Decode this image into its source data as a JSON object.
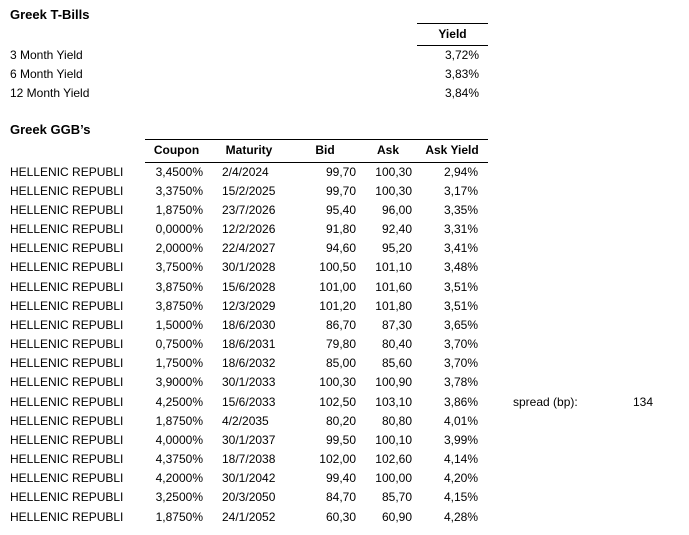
{
  "colors": {
    "background": "#ffffff",
    "text": "#000000",
    "border": "#000000"
  },
  "tbills": {
    "title": "Greek T-Bills",
    "yield_header": "Yield",
    "rows": [
      {
        "label": "3 Month Yield",
        "yield": "3,72%"
      },
      {
        "label": "6 Month Yield",
        "yield": "3,83%"
      },
      {
        "label": "12 Month Yield",
        "yield": "3,84%"
      }
    ]
  },
  "ggb": {
    "title": "Greek GGB’s",
    "headers": {
      "coupon": "Coupon",
      "maturity": "Maturity",
      "bid": "Bid",
      "ask": "Ask",
      "ask_yield": "Ask Yield"
    },
    "rows": [
      {
        "name": "HELLENIC REPUBLI",
        "coupon": "3,4500%",
        "maturity": "2/4/2024",
        "bid": "99,70",
        "ask": "100,30",
        "ask_yield": "2,94%"
      },
      {
        "name": "HELLENIC REPUBLI",
        "coupon": "3,3750%",
        "maturity": "15/2/2025",
        "bid": "99,70",
        "ask": "100,30",
        "ask_yield": "3,17%"
      },
      {
        "name": "HELLENIC REPUBLI",
        "coupon": "1,8750%",
        "maturity": "23/7/2026",
        "bid": "95,40",
        "ask": "96,00",
        "ask_yield": "3,35%"
      },
      {
        "name": "HELLENIC REPUBLI",
        "coupon": "0,0000%",
        "maturity": "12/2/2026",
        "bid": "91,80",
        "ask": "92,40",
        "ask_yield": "3,31%"
      },
      {
        "name": "HELLENIC REPUBLI",
        "coupon": "2,0000%",
        "maturity": "22/4/2027",
        "bid": "94,60",
        "ask": "95,20",
        "ask_yield": "3,41%"
      },
      {
        "name": "HELLENIC REPUBLI",
        "coupon": "3,7500%",
        "maturity": "30/1/2028",
        "bid": "100,50",
        "ask": "101,10",
        "ask_yield": "3,48%"
      },
      {
        "name": "HELLENIC REPUBLI",
        "coupon": "3,8750%",
        "maturity": "15/6/2028",
        "bid": "101,00",
        "ask": "101,60",
        "ask_yield": "3,51%"
      },
      {
        "name": "HELLENIC REPUBLI",
        "coupon": "3,8750%",
        "maturity": "12/3/2029",
        "bid": "101,20",
        "ask": "101,80",
        "ask_yield": "3,51%"
      },
      {
        "name": "HELLENIC REPUBLI",
        "coupon": "1,5000%",
        "maturity": "18/6/2030",
        "bid": "86,70",
        "ask": "87,30",
        "ask_yield": "3,65%"
      },
      {
        "name": "HELLENIC REPUBLI",
        "coupon": "0,7500%",
        "maturity": "18/6/2031",
        "bid": "79,80",
        "ask": "80,40",
        "ask_yield": "3,70%"
      },
      {
        "name": "HELLENIC REPUBLI",
        "coupon": "1,7500%",
        "maturity": "18/6/2032",
        "bid": "85,00",
        "ask": "85,60",
        "ask_yield": "3,70%"
      },
      {
        "name": "HELLENIC REPUBLI",
        "coupon": "3,9000%",
        "maturity": "30/1/2033",
        "bid": "100,30",
        "ask": "100,90",
        "ask_yield": "3,78%"
      },
      {
        "name": "HELLENIC REPUBLI",
        "coupon": "4,2500%",
        "maturity": "15/6/2033",
        "bid": "102,50",
        "ask": "103,10",
        "ask_yield": "3,86%"
      },
      {
        "name": "HELLENIC REPUBLI",
        "coupon": "1,8750%",
        "maturity": "4/2/2035",
        "bid": "80,20",
        "ask": "80,80",
        "ask_yield": "4,01%"
      },
      {
        "name": "HELLENIC REPUBLI",
        "coupon": "4,0000%",
        "maturity": "30/1/2037",
        "bid": "99,50",
        "ask": "100,10",
        "ask_yield": "3,99%"
      },
      {
        "name": "HELLENIC REPUBLI",
        "coupon": "4,3750%",
        "maturity": "18/7/2038",
        "bid": "102,00",
        "ask": "102,60",
        "ask_yield": "4,14%"
      },
      {
        "name": "HELLENIC REPUBLI",
        "coupon": "4,2000%",
        "maturity": "30/1/2042",
        "bid": "99,40",
        "ask": "100,00",
        "ask_yield": "4,20%"
      },
      {
        "name": "HELLENIC REPUBLI",
        "coupon": "3,2500%",
        "maturity": "20/3/2050",
        "bid": "84,70",
        "ask": "85,70",
        "ask_yield": "4,15%"
      },
      {
        "name": "HELLENIC REPUBLI",
        "coupon": "1,8750%",
        "maturity": "24/1/2052",
        "bid": "60,30",
        "ask": "60,90",
        "ask_yield": "4,28%"
      }
    ]
  },
  "spread": {
    "label": "spread (bp):",
    "value": "134"
  }
}
